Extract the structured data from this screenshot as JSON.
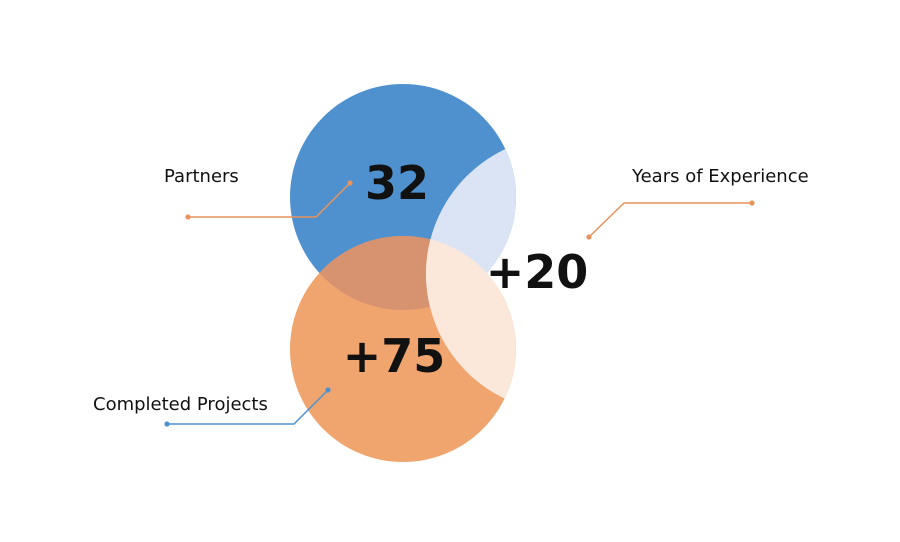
{
  "stats": [
    {
      "id": "partners",
      "value": "32",
      "label": "Partners"
    },
    {
      "id": "experience",
      "value": "+20",
      "label": "Years of Experience"
    },
    {
      "id": "projects",
      "value": "+75",
      "label": "Completed Projects"
    }
  ],
  "colors": {
    "blue": "#4f91cf",
    "orange": "#f0a56e",
    "overlap": "#d79270",
    "pale_blue": "#dbe4f4",
    "pale_orange": "#fbe8db",
    "leader_orange": "#e8935a",
    "leader_blue": "#4f91cf",
    "text": "#111111"
  }
}
